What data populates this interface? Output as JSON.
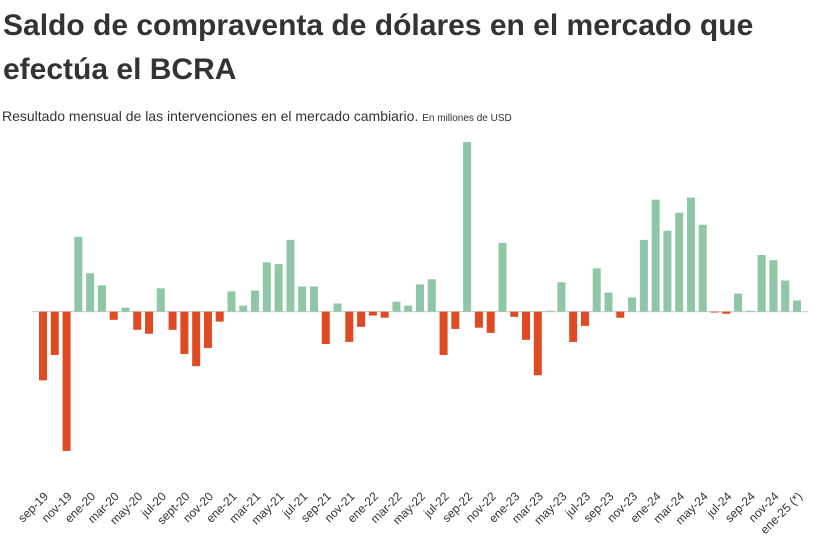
{
  "chart_data": {
    "type": "bar",
    "title": "Saldo de compraventa de dólares en el mercado que efectúa el BCRA",
    "subtitle": "Resultado  mensual de las intervenciones en el mercado cambiario.",
    "unit_note": "En millones de USD",
    "categories": [
      "sep-19",
      null,
      "nov-19",
      null,
      "ene-20",
      null,
      "mar-20",
      null,
      "may-20",
      null,
      "jul-20",
      null,
      "sept-20",
      null,
      "nov-20",
      null,
      "ene-21",
      null,
      "mar-21",
      null,
      "may-21",
      null,
      "jul-21",
      null,
      "sep-21",
      null,
      "nov-21",
      null,
      "ene-22",
      null,
      "mar-22",
      null,
      "may-22",
      null,
      "jul-22",
      null,
      "sep-22",
      null,
      "nov-22",
      null,
      "ene-23",
      null,
      "mar-23",
      null,
      "may-23",
      null,
      "jul-23",
      null,
      "sep-23",
      null,
      "nov-23",
      null,
      "ene-24",
      null,
      "mar-24",
      null,
      "may-24",
      null,
      "jul-24",
      null,
      "sep-24",
      null,
      "nov-24",
      null,
      "ene-25 (*)"
    ],
    "values": [
      -2270,
      -1430,
      -4600,
      2470,
      1270,
      870,
      -270,
      130,
      -600,
      -730,
      770,
      -600,
      -1400,
      -1800,
      -1200,
      -330,
      670,
      200,
      700,
      1630,
      1570,
      2370,
      830,
      830,
      -1070,
      270,
      -1000,
      -500,
      -130,
      -200,
      330,
      200,
      900,
      1070,
      -1430,
      -570,
      5600,
      -530,
      -700,
      2270,
      -170,
      -930,
      -2100,
      30,
      970,
      -1000,
      -470,
      1430,
      630,
      -200,
      470,
      2370,
      3700,
      2670,
      3270,
      3770,
      2870,
      -30,
      -70,
      600,
      30,
      1870,
      1700,
      1030,
      370
    ],
    "positive_color": "#8ec6a6",
    "negative_color": "#e04a23",
    "ylim": [
      -4900,
      6000
    ]
  }
}
